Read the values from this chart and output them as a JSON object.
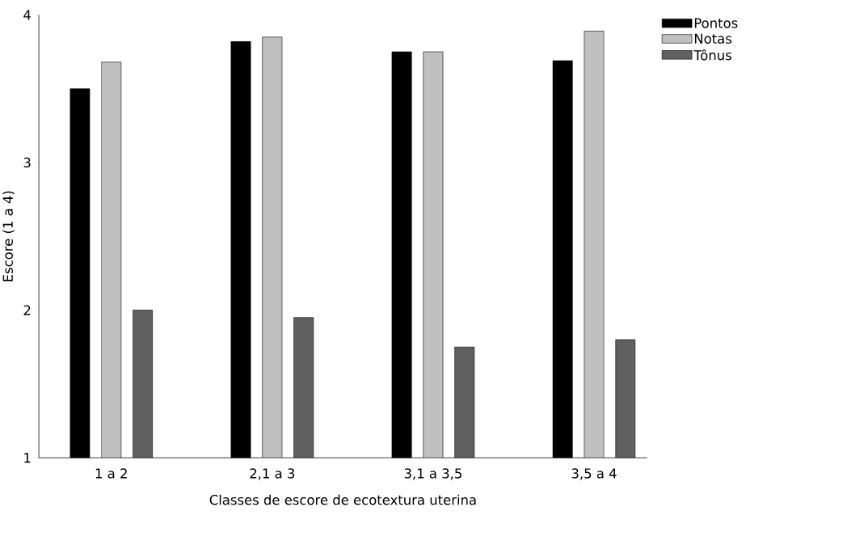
{
  "chart_data": {
    "type": "bar",
    "xlabel": "Classes de escore de ecotextura uterina",
    "ylabel": "Escore (1 a 4)",
    "categories": [
      "1 a 2",
      "2,1 a 3",
      "3,1 a 3,5",
      "3,5 a 4"
    ],
    "series": [
      {
        "name": "Pontos",
        "color": "#000000",
        "values": [
          3.5,
          3.82,
          3.75,
          3.69
        ]
      },
      {
        "name": "Notas",
        "color": "#c0c0c0",
        "values": [
          3.68,
          3.85,
          3.75,
          3.89
        ]
      },
      {
        "name": "Tônus",
        "color": "#606060",
        "values": [
          2.0,
          1.95,
          1.75,
          1.8
        ]
      }
    ],
    "ylim": [
      1,
      4
    ],
    "yticks": [
      1,
      2,
      3,
      4
    ],
    "grid": false,
    "legend": "top right"
  }
}
